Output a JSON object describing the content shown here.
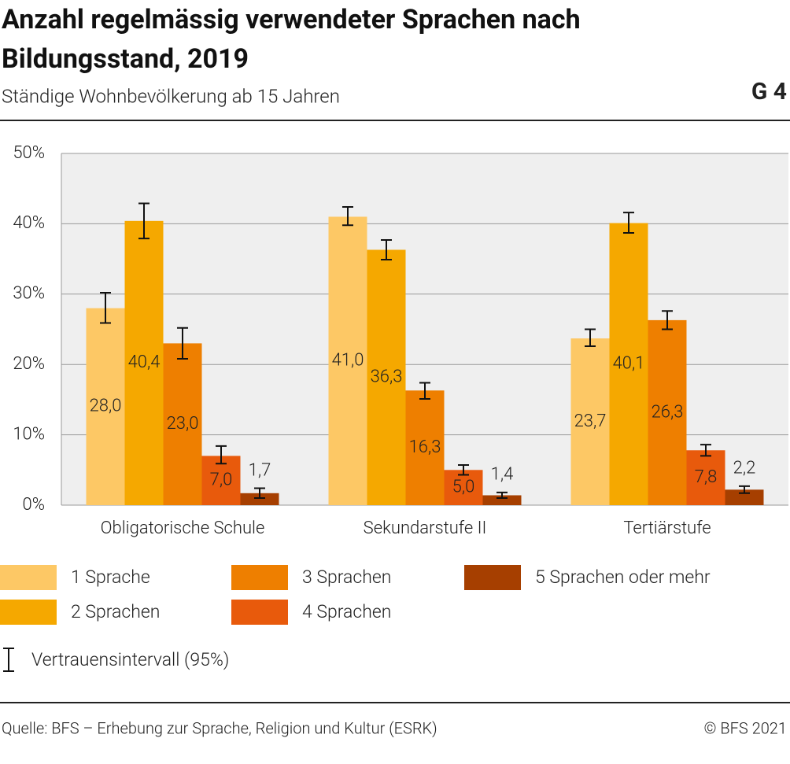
{
  "chart_data": {
    "type": "bar",
    "title": "Anzahl regelmässig verwendeter Sprachen nach Bildungsstand, 2019",
    "subtitle": "Ständige Wohnbevölkerung ab 15 Jahren",
    "chart_id": "G 4",
    "categories": [
      "Obligatorische Schule",
      "Sekundarstufe II",
      "Tertiärstufe"
    ],
    "series": [
      {
        "name": "1 Sprache",
        "color": "#fdc865",
        "values": [
          28.0,
          41.0,
          23.7
        ],
        "value_labels": [
          "28,0",
          "41,0",
          "23,7"
        ],
        "ci": [
          [
            25.9,
            30.2
          ],
          [
            39.8,
            42.4
          ],
          [
            22.6,
            25.0
          ]
        ]
      },
      {
        "name": "2 Sprachen",
        "color": "#f5a800",
        "values": [
          40.4,
          36.3,
          40.1
        ],
        "value_labels": [
          "40,4",
          "36,3",
          "40,1"
        ],
        "ci": [
          [
            37.9,
            42.9
          ],
          [
            34.9,
            37.7
          ],
          [
            38.7,
            41.6
          ]
        ]
      },
      {
        "name": "3 Sprachen",
        "color": "#ee7f00",
        "values": [
          23.0,
          16.3,
          26.3
        ],
        "value_labels": [
          "23,0",
          "16,3",
          "26,3"
        ],
        "ci": [
          [
            20.8,
            25.2
          ],
          [
            15.1,
            17.4
          ],
          [
            25.0,
            27.6
          ]
        ]
      },
      {
        "name": "4 Sprachen",
        "color": "#e85a0c",
        "values": [
          7.0,
          5.0,
          7.8
        ],
        "value_labels": [
          "7,0",
          "5,0",
          "7,8"
        ],
        "ci": [
          [
            5.9,
            8.4
          ],
          [
            4.3,
            5.7
          ],
          [
            7.0,
            8.6
          ]
        ]
      },
      {
        "name": "5 Sprachen oder mehr",
        "color": "#a63f00",
        "values": [
          1.7,
          1.4,
          2.2
        ],
        "value_labels": [
          "1,7",
          "1,4",
          "2,2"
        ],
        "ci": [
          [
            1.0,
            2.4
          ],
          [
            1.0,
            1.8
          ],
          [
            1.7,
            2.7
          ]
        ]
      }
    ],
    "ci_label": "Vertrauensintervall (95%)",
    "ylim": [
      0,
      50
    ],
    "yticks": [
      {
        "value": 0,
        "label": "0%"
      },
      {
        "value": 10,
        "label": "10%"
      },
      {
        "value": 20,
        "label": "20%"
      },
      {
        "value": 30,
        "label": "30%"
      },
      {
        "value": 40,
        "label": "40%"
      },
      {
        "value": 50,
        "label": "50%"
      }
    ],
    "grid": true
  },
  "source": "Quelle: BFS – Erhebung zur Sprache, Religion und Kultur (ESRK)",
  "copyright": "© BFS 2021"
}
